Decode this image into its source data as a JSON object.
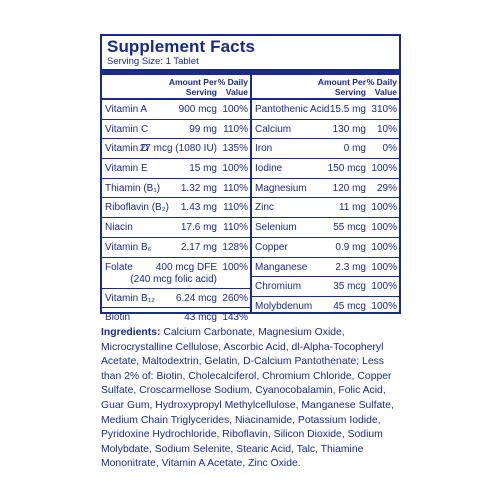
{
  "panel": {
    "title": "Supplement Facts",
    "serving": "Serving Size: 1 Tablet",
    "header": {
      "amount_line1": "Amount Per",
      "amount_line2": "Serving",
      "dv_line1": "% Daily",
      "dv_line2": "Value"
    },
    "left_rows": [
      {
        "name": "Vitamin A",
        "amount": "900 mcg",
        "dv": "100%"
      },
      {
        "name": "Vitamin C",
        "amount": "99 mg",
        "dv": "110%"
      },
      {
        "name": "Vitamin D",
        "amount": "27 mcg (1080 IU)",
        "dv": "135%"
      },
      {
        "name": "Vitamin E",
        "amount": "15 mg",
        "dv": "100%"
      },
      {
        "name": "Thiamin (B₁)",
        "amount": "1.32 mg",
        "dv": "110%"
      },
      {
        "name": "Riboflavin (B₂)",
        "amount": "1.43 mg",
        "dv": "110%"
      },
      {
        "name": "Niacin",
        "amount": "17.6 mg",
        "dv": "110%"
      },
      {
        "name": "Vitamin B₆",
        "amount": "2.17 mg",
        "dv": "128%"
      },
      {
        "name": "Folate",
        "amount": "400 mcg DFE",
        "amount2": "(240 mcg folic acid)",
        "dv": "100%"
      },
      {
        "name": "Vitamin B₁₂",
        "amount": "6.24 mcg",
        "dv": "260%"
      },
      {
        "name": "Biotin",
        "amount": "43 mcg",
        "dv": "143%"
      }
    ],
    "right_rows": [
      {
        "name": "Pantothenic Acid",
        "amount": "15.5 mg",
        "dv": "310%"
      },
      {
        "name": "Calcium",
        "amount": "130 mg",
        "dv": "10%"
      },
      {
        "name": "Iron",
        "amount": "0 mg",
        "dv": "0%"
      },
      {
        "name": "Iodine",
        "amount": "150 mcg",
        "dv": "100%"
      },
      {
        "name": "Magnesium",
        "amount": "120 mg",
        "dv": "29%"
      },
      {
        "name": "Zinc",
        "amount": "11 mg",
        "dv": "100%"
      },
      {
        "name": "Selenium",
        "amount": "55 mcg",
        "dv": "100%"
      },
      {
        "name": "Copper",
        "amount": "0.9 mg",
        "dv": "100%"
      },
      {
        "name": "Manganese",
        "amount": "2.3 mg",
        "dv": "100%"
      },
      {
        "name": "Chromium",
        "amount": "35 mcg",
        "dv": "100%"
      },
      {
        "name": "Molybdenum",
        "amount": "45 mcg",
        "dv": "100%"
      }
    ]
  },
  "ingredients": {
    "label": "Ingredients:",
    "text": "Calcium Carbonate, Magnesium Oxide, Microcrystalline Cellulose, Ascorbic Acid, dl-Alpha-Tocopheryl Acetate, Maltodextrin, Gelatin, D-Calcium Pantothenate; Less than 2% of: Biotin, Cholecalciferol, Chromium Chloride, Copper Sulfate, Croscarmellose Sodium, Cyanocobalamin, Folic Acid, Guar Gum, Hydroxypropyl Methylcellulose, Manganese Sulfate, Medium Chain Triglycerides, Niacinamide, Potassium Iodide, Pyridoxine Hydrochloride, Riboflavin, Silicon Dioxide, Sodium Molybdate, Sodium Selenite, Stearic Acid, Talc, Thiamine Mononitrate, Vitamin A Acetate, Zinc Oxide."
  },
  "colors": {
    "ink": "#1a2a8c",
    "background": "#ffffff"
  }
}
